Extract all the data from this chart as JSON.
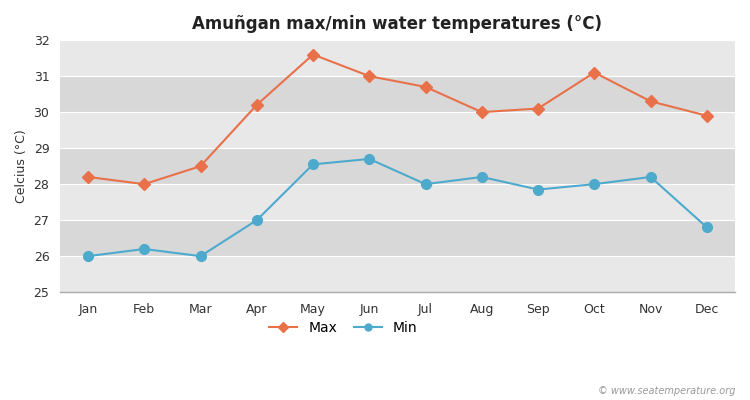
{
  "title": "Amuñgan max/min water temperatures (°C)",
  "ylabel": "Celcius (°C)",
  "months": [
    "Jan",
    "Feb",
    "Mar",
    "Apr",
    "May",
    "Jun",
    "Jul",
    "Aug",
    "Sep",
    "Oct",
    "Nov",
    "Dec"
  ],
  "max_temps": [
    28.2,
    28.0,
    28.5,
    30.2,
    31.6,
    31.0,
    30.7,
    30.0,
    30.1,
    31.1,
    30.3,
    29.9
  ],
  "min_temps": [
    26.0,
    26.2,
    26.0,
    27.0,
    28.55,
    28.7,
    28.0,
    28.2,
    27.85,
    28.0,
    28.2,
    26.8
  ],
  "max_color": "#e8714a",
  "min_color": "#4eaacc",
  "fig_bg_color": "#ffffff",
  "plot_bg_color": "#ebebeb",
  "band_colors": [
    "#e8e8e8",
    "#d8d8d8"
  ],
  "grid_color": "#ffffff",
  "ylim": [
    25,
    32
  ],
  "yticks": [
    25,
    26,
    27,
    28,
    29,
    30,
    31,
    32
  ],
  "watermark": "© www.seatemperature.org",
  "legend_labels": [
    "Max",
    "Min"
  ]
}
